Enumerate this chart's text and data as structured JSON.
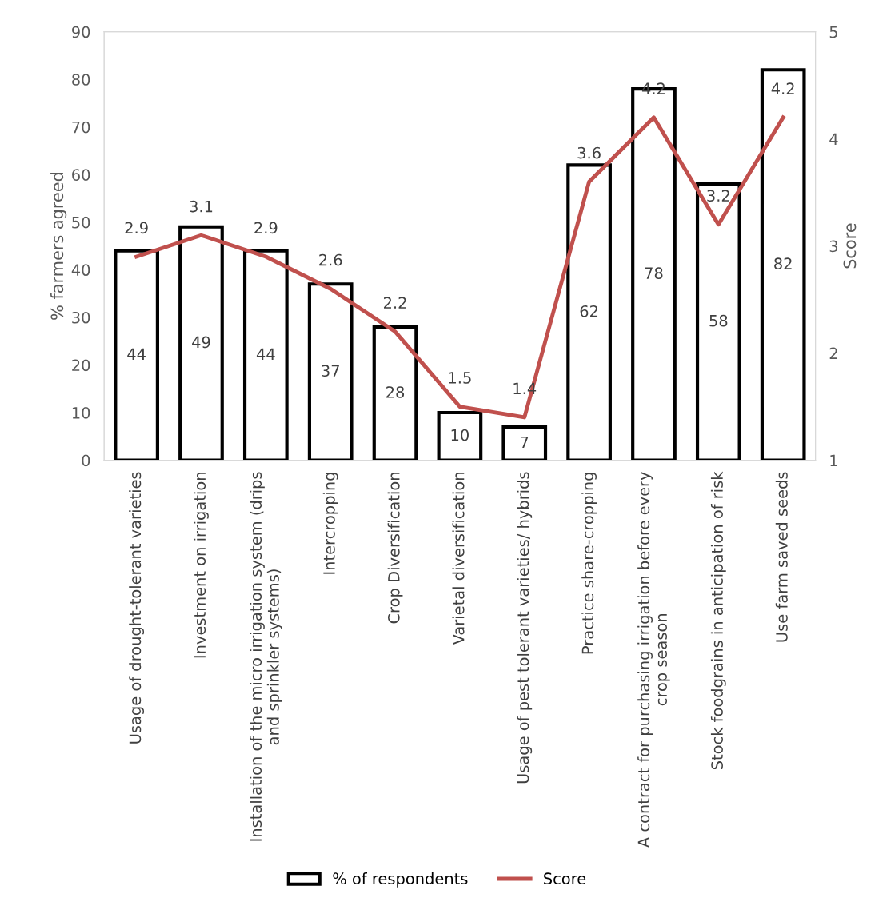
{
  "chart_data": {
    "type": "bar",
    "categories": [
      "Usage of drought-tolerant varieties",
      "Investment on irrigation",
      "Installation of the micro irrigation system (drips and sprinkler systems)",
      "Intercropping",
      "Crop Diversification",
      "Varietal diversification",
      "Usage of pest tolerant varieties/ hybrids",
      "Practice share-cropping",
      "A contract for purchasing irrigation before every crop season",
      "Stock foodgrains in anticipation of risk",
      "Use farm saved seeds"
    ],
    "series": [
      {
        "name": "% of respondents",
        "color": "#ffffff",
        "values": [
          44,
          49,
          44,
          37,
          28,
          10,
          7,
          62,
          78,
          58,
          82
        ]
      },
      {
        "name": "Score",
        "type": "line",
        "axis": "y2",
        "color": "#c0504d",
        "values": [
          2.9,
          3.1,
          2.9,
          2.6,
          2.2,
          1.5,
          1.4,
          3.6,
          4.2,
          3.2,
          4.2
        ]
      }
    ],
    "ylabel": "% farmers agreed",
    "y2label": "Score",
    "ylim": [
      0,
      90
    ],
    "yticks": [
      0,
      10,
      20,
      30,
      40,
      50,
      60,
      70,
      80,
      90
    ],
    "y2lim": [
      1,
      5
    ],
    "y2ticks": [
      1,
      2,
      3,
      4,
      5
    ],
    "data_labels": true,
    "grid": false,
    "legend": "bottom",
    "marker": "none",
    "line_style": "solid"
  }
}
